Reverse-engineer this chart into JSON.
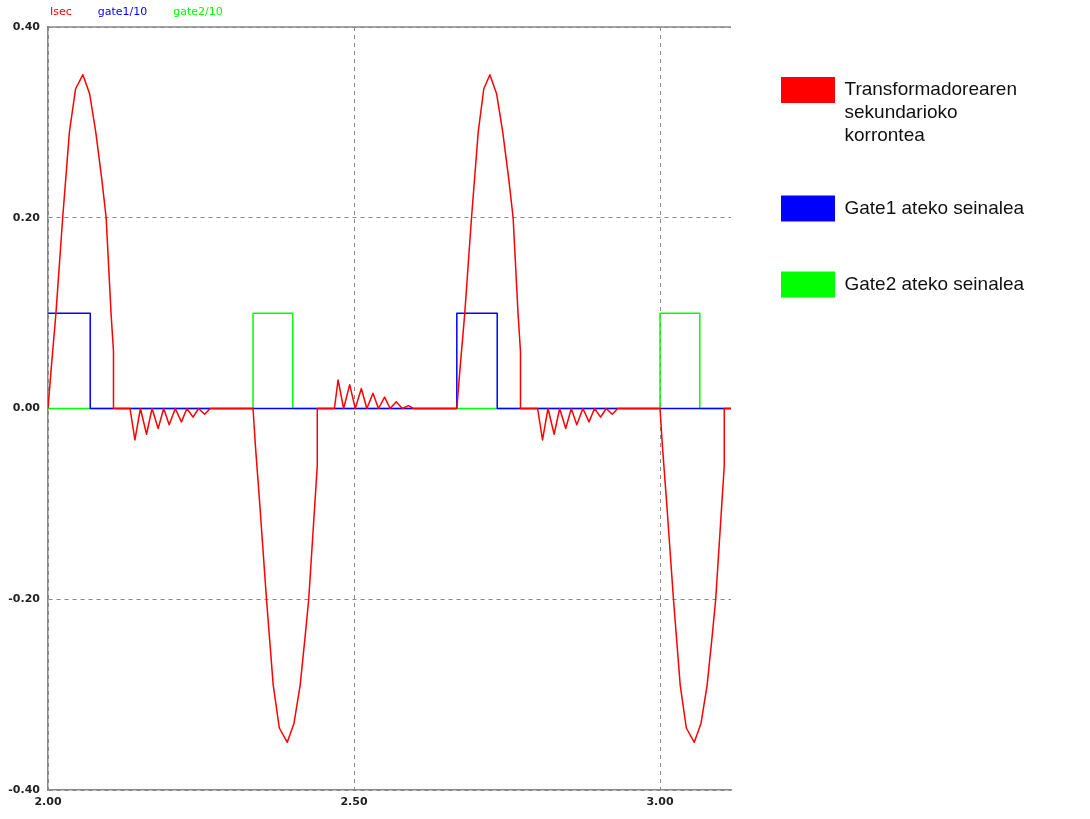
{
  "chart_data": {
    "type": "line",
    "annotations": [
      "Isec",
      "gate1/10",
      "gate2/10"
    ],
    "xlim": [
      2.0,
      3.116
    ],
    "xticks": [
      {
        "value": 2,
        "label": "2.00"
      },
      {
        "value": 2.5,
        "label": "2.50"
      },
      {
        "value": 3,
        "label": "3.00"
      }
    ],
    "ylim": [
      -0.4,
      0.4
    ],
    "yticks": [
      {
        "value": -0.4,
        "label": "-0.40"
      },
      {
        "value": -0.2,
        "label": "-0.20"
      },
      {
        "value": 0,
        "label": "0.00"
      },
      {
        "value": 0.2,
        "label": "0.20"
      },
      {
        "value": 0.4,
        "label": "0.40"
      }
    ],
    "grid": true,
    "legend": "right",
    "marker": "none",
    "series": [
      {
        "name": "Transformadorearen sekundarioko korrontea",
        "type": "line",
        "color": "#ff0000",
        "x": [
          2.0,
          2.005,
          2.013,
          2.024,
          2.035,
          2.045,
          2.057,
          2.068,
          2.078,
          2.088,
          2.095,
          2.103,
          2.107,
          2.107,
          2.134,
          2.142,
          2.151,
          2.161,
          2.17,
          2.18,
          2.189,
          2.198,
          2.208,
          2.218,
          2.227,
          2.237,
          2.246,
          2.256,
          2.265,
          2.335,
          2.339,
          2.346,
          2.357,
          2.368,
          2.378,
          2.391,
          2.402,
          2.412,
          2.42,
          2.426,
          2.436,
          2.44,
          2.44,
          2.468,
          2.474,
          2.483,
          2.493,
          2.502,
          2.512,
          2.521,
          2.531,
          2.54,
          2.55,
          2.559,
          2.569,
          2.579,
          2.589,
          2.597,
          2.668,
          2.673,
          2.681,
          2.692,
          2.703,
          2.712,
          2.722,
          2.733,
          2.743,
          2.753,
          2.76,
          2.768,
          2.772,
          2.772,
          2.8,
          2.808,
          2.817,
          2.827,
          2.836,
          2.846,
          2.855,
          2.864,
          2.874,
          2.884,
          2.893,
          2.903,
          2.912,
          2.922,
          2.931,
          3.0,
          3.004,
          3.011,
          3.022,
          3.033,
          3.043,
          3.056,
          3.067,
          3.077,
          3.085,
          3.091,
          3.101,
          3.105,
          3.105,
          3.116
        ],
        "values": [
          0,
          0.04,
          0.1,
          0.2,
          0.29,
          0.335,
          0.35,
          0.33,
          0.29,
          0.24,
          0.2,
          0.1,
          0.06,
          0,
          0,
          -0.033,
          0,
          -0.027,
          0,
          -0.021,
          0,
          -0.017,
          0,
          -0.014,
          0,
          -0.009,
          0,
          -0.006,
          0,
          0,
          -0.04,
          -0.1,
          -0.2,
          -0.29,
          -0.335,
          -0.35,
          -0.33,
          -0.29,
          -0.24,
          -0.2,
          -0.1,
          -0.06,
          0,
          0,
          0.03,
          0,
          0.025,
          0,
          0.021,
          0,
          0.016,
          0,
          0.012,
          0,
          0.007,
          0,
          0.003,
          0,
          0,
          0.04,
          0.1,
          0.2,
          0.29,
          0.335,
          0.35,
          0.33,
          0.29,
          0.24,
          0.2,
          0.1,
          0.06,
          0,
          0,
          -0.033,
          0,
          -0.027,
          0,
          -0.021,
          0,
          -0.017,
          0,
          -0.014,
          0,
          -0.009,
          0,
          -0.006,
          0,
          0,
          -0.04,
          -0.1,
          -0.2,
          -0.29,
          -0.335,
          -0.35,
          -0.33,
          -0.29,
          -0.24,
          -0.2,
          -0.1,
          -0.06,
          0,
          0
        ]
      },
      {
        "name": "Gate1 ateko seinalea",
        "type": "step",
        "color": "#0000ff",
        "x": [
          2.0,
          2.069,
          2.668,
          2.734,
          3.116
        ],
        "values": [
          0.1,
          0,
          0.1,
          0,
          0
        ]
      },
      {
        "name": "Gate2 ateko seinalea",
        "type": "step",
        "color": "#00ff00",
        "x": [
          2.0,
          2.335,
          2.4,
          3.0,
          3.065,
          3.116
        ],
        "values": [
          0,
          0.1,
          0,
          0.1,
          0,
          0
        ]
      }
    ]
  }
}
